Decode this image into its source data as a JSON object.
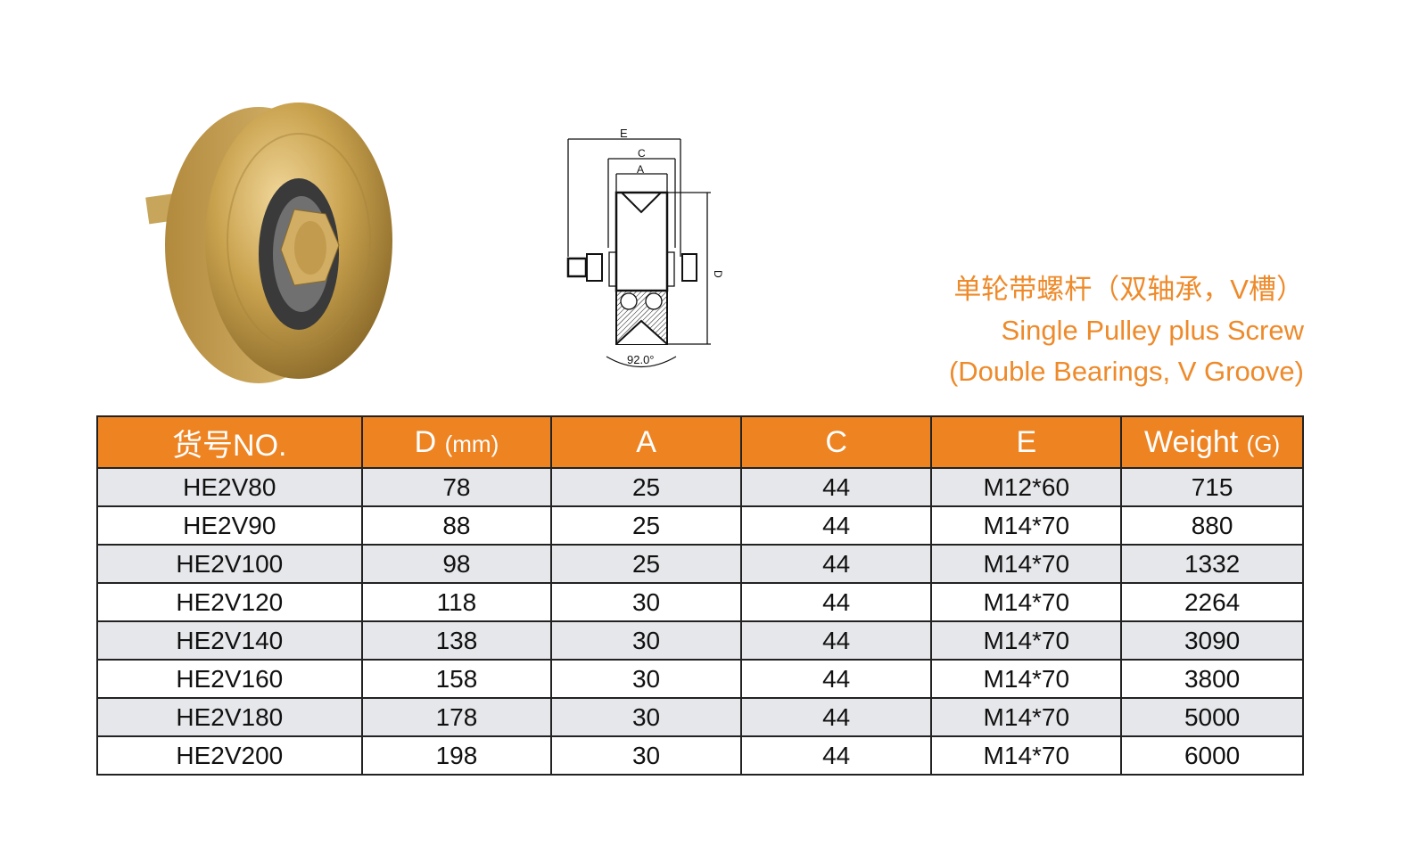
{
  "title": {
    "chinese": "单轮带螺杆（双轴承，V槽）",
    "english_line1": "Single Pulley plus Screw",
    "english_line2": "(Double Bearings, V Groove)",
    "color": "#ee8a2a"
  },
  "diagram": {
    "labels": {
      "e": "E",
      "c": "C",
      "a": "A",
      "d": "D",
      "angle": "92.0°"
    }
  },
  "table": {
    "header_color": "#ee8322",
    "columns": [
      {
        "label": "货号NO.",
        "unit": ""
      },
      {
        "label": "D ",
        "unit": "(mm)"
      },
      {
        "label": "A",
        "unit": ""
      },
      {
        "label": "C",
        "unit": ""
      },
      {
        "label": "E",
        "unit": ""
      },
      {
        "label": "Weight ",
        "unit": "(G)"
      }
    ],
    "rows": [
      [
        "HE2V80",
        "78",
        "25",
        "44",
        "M12*60",
        "715"
      ],
      [
        "HE2V90",
        "88",
        "25",
        "44",
        "M14*70",
        "880"
      ],
      [
        "HE2V100",
        "98",
        "25",
        "44",
        "M14*70",
        "1332"
      ],
      [
        "HE2V120",
        "118",
        "30",
        "44",
        "M14*70",
        "2264"
      ],
      [
        "HE2V140",
        "138",
        "30",
        "44",
        "M14*70",
        "3090"
      ],
      [
        "HE2V160",
        "158",
        "30",
        "44",
        "M14*70",
        "3800"
      ],
      [
        "HE2V180",
        "178",
        "30",
        "44",
        "M14*70",
        "5000"
      ],
      [
        "HE2V200",
        "198",
        "30",
        "44",
        "M14*70",
        "6000"
      ]
    ]
  }
}
